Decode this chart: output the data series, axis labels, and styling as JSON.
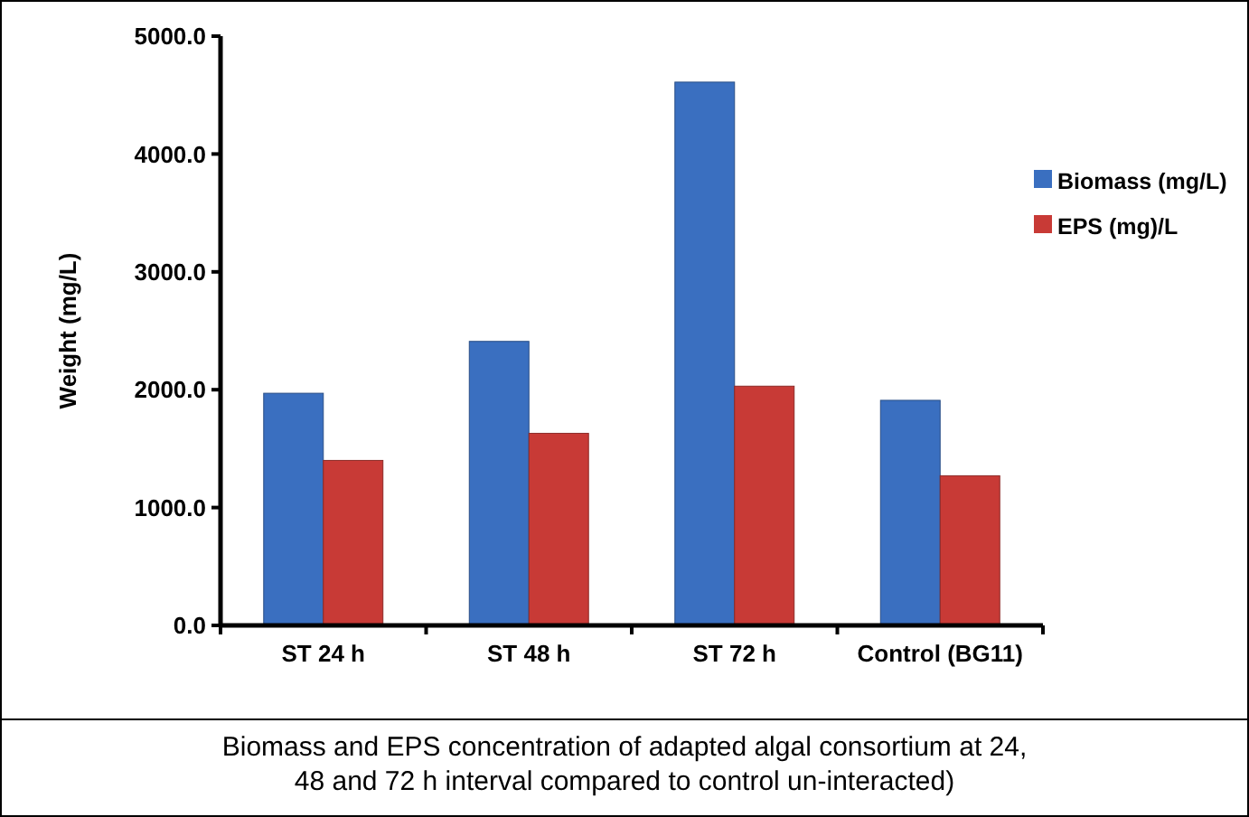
{
  "chart_data": {
    "type": "bar",
    "ylabel": "Weight (mg/L)",
    "categories": [
      "ST 24 h",
      "ST 48 h",
      "ST 72 h",
      "Control (BG11)"
    ],
    "series": [
      {
        "name": "Biomass (mg/L)",
        "color": "#3a6fc0",
        "values": [
          1970,
          2410,
          4610,
          1910
        ]
      },
      {
        "name": "EPS (mg)/L",
        "color": "#c83a36",
        "values": [
          1400,
          1630,
          2030,
          1270
        ]
      }
    ],
    "ylim": [
      0,
      5000
    ],
    "yticks": [
      {
        "value": 0,
        "label": "0.0"
      },
      {
        "value": 1000,
        "label": "1000.0"
      },
      {
        "value": 2000,
        "label": "2000.0"
      },
      {
        "value": 3000,
        "label": "3000.0"
      },
      {
        "value": 4000,
        "label": "4000.0"
      },
      {
        "value": 5000,
        "label": "5000.0"
      }
    ],
    "legend": "right",
    "grid": false,
    "annotations": [
      "Biomass and EPS concentration of adapted algal consortium at 24, 48 and 72 h interval compared to control un-interacted)"
    ]
  }
}
